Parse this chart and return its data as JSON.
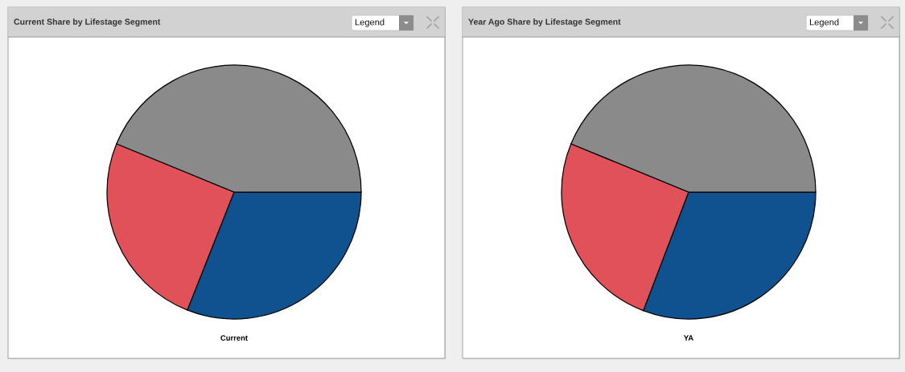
{
  "chart_data": [
    {
      "type": "pie",
      "title": "Current Share by Lifestage Segment",
      "xlabel": "Current",
      "categories": [
        null,
        null,
        null
      ],
      "values": [
        31.0,
        25.2,
        43.8
      ],
      "colors": [
        "#105290",
        "#e0515a",
        "#8a8a8a"
      ],
      "annotations": [
        "Legend"
      ]
    },
    {
      "type": "pie",
      "title": "Year Ago Share by Lifestage Segment",
      "xlabel": "YA",
      "categories": [
        null,
        null,
        null
      ],
      "values": [
        30.8,
        25.4,
        43.8
      ],
      "colors": [
        "#105290",
        "#e0515a",
        "#8a8a8a"
      ],
      "annotations": [
        "Legend"
      ]
    }
  ]
}
